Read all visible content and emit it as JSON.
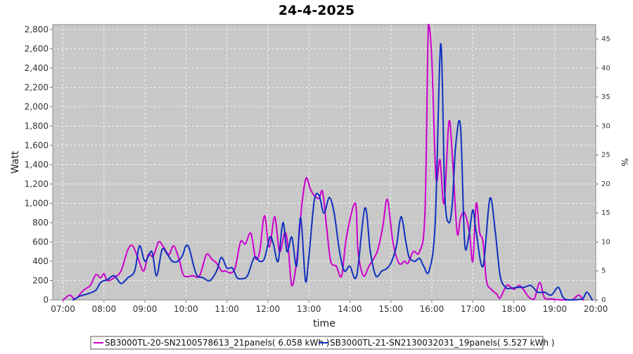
{
  "chart_data": {
    "type": "line",
    "title": "24-4-2025",
    "xlabel": "time",
    "ylabel": "Watt",
    "y2label": "%",
    "x_ticks": [
      "07:00",
      "08:00",
      "09:00",
      "10:00",
      "11:00",
      "12:00",
      "13:00",
      "14:00",
      "15:00",
      "16:00",
      "17:00",
      "18:00",
      "19:00",
      "20:00"
    ],
    "xlim": [
      "06:45",
      "20:00"
    ],
    "ylim": [
      0,
      2850
    ],
    "y_ticks": [
      0,
      200,
      400,
      600,
      800,
      1000,
      1200,
      1400,
      1600,
      1800,
      2000,
      2200,
      2400,
      2600,
      2800
    ],
    "y2lim": [
      0,
      47.5
    ],
    "y2_ticks": [
      0,
      5,
      10,
      15,
      20,
      25,
      30,
      35,
      40,
      45
    ],
    "grid": true,
    "legend_position": "bottom",
    "series": [
      {
        "name": "SB3000TL-20-SN2100578613_21panels( 6.058 kWh )",
        "color": "#cc00cc",
        "points": [
          [
            "07:00",
            0
          ],
          [
            "07:10",
            50
          ],
          [
            "07:18",
            10
          ],
          [
            "07:30",
            100
          ],
          [
            "07:40",
            150
          ],
          [
            "07:48",
            260
          ],
          [
            "07:55",
            230
          ],
          [
            "08:00",
            270
          ],
          [
            "08:05",
            200
          ],
          [
            "08:15",
            230
          ],
          [
            "08:25",
            300
          ],
          [
            "08:35",
            520
          ],
          [
            "08:42",
            560
          ],
          [
            "08:50",
            430
          ],
          [
            "08:58",
            300
          ],
          [
            "09:05",
            470
          ],
          [
            "09:12",
            450
          ],
          [
            "09:20",
            600
          ],
          [
            "09:27",
            550
          ],
          [
            "09:35",
            470
          ],
          [
            "09:42",
            560
          ],
          [
            "09:50",
            420
          ],
          [
            "09:55",
            280
          ],
          [
            "10:00",
            240
          ],
          [
            "10:10",
            250
          ],
          [
            "10:20",
            250
          ],
          [
            "10:30",
            470
          ],
          [
            "10:38",
            420
          ],
          [
            "10:45",
            380
          ],
          [
            "10:52",
            300
          ],
          [
            "10:58",
            300
          ],
          [
            "11:05",
            280
          ],
          [
            "11:12",
            330
          ],
          [
            "11:20",
            600
          ],
          [
            "11:27",
            580
          ],
          [
            "11:35",
            690
          ],
          [
            "11:42",
            430
          ],
          [
            "11:48",
            500
          ],
          [
            "11:55",
            870
          ],
          [
            "12:02",
            550
          ],
          [
            "12:10",
            860
          ],
          [
            "12:17",
            500
          ],
          [
            "12:25",
            700
          ],
          [
            "12:30",
            520
          ],
          [
            "12:35",
            150
          ],
          [
            "12:42",
            400
          ],
          [
            "12:50",
            1000
          ],
          [
            "12:56",
            1260
          ],
          [
            "13:02",
            1150
          ],
          [
            "13:08",
            1080
          ],
          [
            "13:15",
            1050
          ],
          [
            "13:20",
            1120
          ],
          [
            "13:26",
            750
          ],
          [
            "13:32",
            400
          ],
          [
            "13:40",
            350
          ],
          [
            "13:48",
            250
          ],
          [
            "13:55",
            650
          ],
          [
            "14:08",
            1000
          ],
          [
            "14:12",
            500
          ],
          [
            "14:20",
            250
          ],
          [
            "14:28",
            350
          ],
          [
            "14:40",
            500
          ],
          [
            "14:48",
            750
          ],
          [
            "14:55",
            1040
          ],
          [
            "15:03",
            600
          ],
          [
            "15:12",
            380
          ],
          [
            "15:20",
            400
          ],
          [
            "15:25",
            380
          ],
          [
            "15:33",
            500
          ],
          [
            "15:42",
            500
          ],
          [
            "15:50",
            900
          ],
          [
            "15:55",
            2850
          ],
          [
            "16:00",
            2500
          ],
          [
            "16:06",
            1270
          ],
          [
            "16:12",
            1450
          ],
          [
            "16:18",
            1000
          ],
          [
            "16:25",
            1840
          ],
          [
            "16:30",
            1500
          ],
          [
            "16:37",
            700
          ],
          [
            "16:42",
            850
          ],
          [
            "16:48",
            900
          ],
          [
            "16:55",
            700
          ],
          [
            "17:00",
            400
          ],
          [
            "17:05",
            1000
          ],
          [
            "17:10",
            700
          ],
          [
            "17:15",
            600
          ],
          [
            "17:20",
            200
          ],
          [
            "17:27",
            110
          ],
          [
            "17:35",
            60
          ],
          [
            "17:40",
            20
          ],
          [
            "17:50",
            150
          ],
          [
            "18:00",
            110
          ],
          [
            "18:08",
            150
          ],
          [
            "18:15",
            100
          ],
          [
            "18:22",
            30
          ],
          [
            "18:30",
            10
          ],
          [
            "18:38",
            180
          ],
          [
            "18:45",
            20
          ],
          [
            "18:55",
            10
          ],
          [
            "19:10",
            0
          ],
          [
            "19:25",
            0
          ],
          [
            "19:35",
            50
          ],
          [
            "19:42",
            0
          ]
        ]
      },
      {
        "name": "SB3000TL-21-SN2130032031_19panels( 5.527 kWh )",
        "color": "#1030c0",
        "points": [
          [
            "07:15",
            0
          ],
          [
            "07:25",
            40
          ],
          [
            "07:35",
            60
          ],
          [
            "07:48",
            100
          ],
          [
            "07:55",
            180
          ],
          [
            "08:05",
            210
          ],
          [
            "08:15",
            250
          ],
          [
            "08:25",
            170
          ],
          [
            "08:35",
            230
          ],
          [
            "08:45",
            300
          ],
          [
            "08:52",
            560
          ],
          [
            "09:00",
            400
          ],
          [
            "09:10",
            500
          ],
          [
            "09:17",
            250
          ],
          [
            "09:25",
            520
          ],
          [
            "09:32",
            480
          ],
          [
            "09:40",
            400
          ],
          [
            "09:48",
            400
          ],
          [
            "09:55",
            460
          ],
          [
            "10:00",
            560
          ],
          [
            "10:05",
            530
          ],
          [
            "10:15",
            270
          ],
          [
            "10:25",
            230
          ],
          [
            "10:35",
            200
          ],
          [
            "10:45",
            300
          ],
          [
            "10:52",
            440
          ],
          [
            "11:00",
            330
          ],
          [
            "11:08",
            330
          ],
          [
            "11:15",
            230
          ],
          [
            "11:22",
            220
          ],
          [
            "11:30",
            250
          ],
          [
            "11:40",
            440
          ],
          [
            "11:48",
            400
          ],
          [
            "11:55",
            430
          ],
          [
            "12:03",
            650
          ],
          [
            "12:08",
            580
          ],
          [
            "12:15",
            400
          ],
          [
            "12:22",
            800
          ],
          [
            "12:28",
            500
          ],
          [
            "12:35",
            650
          ],
          [
            "12:42",
            350
          ],
          [
            "12:48",
            850
          ],
          [
            "12:55",
            200
          ],
          [
            "13:00",
            450
          ],
          [
            "13:08",
            1030
          ],
          [
            "13:15",
            1080
          ],
          [
            "13:22",
            900
          ],
          [
            "13:30",
            1060
          ],
          [
            "13:37",
            900
          ],
          [
            "13:45",
            500
          ],
          [
            "13:52",
            300
          ],
          [
            "14:00",
            350
          ],
          [
            "14:10",
            250
          ],
          [
            "14:22",
            950
          ],
          [
            "14:30",
            500
          ],
          [
            "14:38",
            250
          ],
          [
            "14:47",
            300
          ],
          [
            "14:53",
            320
          ],
          [
            "15:00",
            380
          ],
          [
            "15:08",
            550
          ],
          [
            "15:15",
            860
          ],
          [
            "15:22",
            600
          ],
          [
            "15:27",
            440
          ],
          [
            "15:35",
            400
          ],
          [
            "15:42",
            430
          ],
          [
            "15:48",
            350
          ],
          [
            "15:56",
            300
          ],
          [
            "16:05",
            800
          ],
          [
            "16:13",
            2650
          ],
          [
            "16:19",
            1100
          ],
          [
            "16:25",
            800
          ],
          [
            "16:30",
            1000
          ],
          [
            "16:35",
            1600
          ],
          [
            "16:42",
            1800
          ],
          [
            "16:48",
            600
          ],
          [
            "16:54",
            650
          ],
          [
            "17:00",
            930
          ],
          [
            "17:05",
            700
          ],
          [
            "17:15",
            350
          ],
          [
            "17:25",
            1050
          ],
          [
            "17:33",
            700
          ],
          [
            "17:40",
            250
          ],
          [
            "17:48",
            130
          ],
          [
            "17:55",
            120
          ],
          [
            "18:05",
            130
          ],
          [
            "18:15",
            130
          ],
          [
            "18:25",
            150
          ],
          [
            "18:35",
            80
          ],
          [
            "18:45",
            80
          ],
          [
            "18:55",
            50
          ],
          [
            "19:05",
            130
          ],
          [
            "19:12",
            30
          ],
          [
            "19:20",
            0
          ],
          [
            "19:40",
            10
          ],
          [
            "19:47",
            80
          ],
          [
            "19:55",
            0
          ]
        ]
      }
    ]
  }
}
